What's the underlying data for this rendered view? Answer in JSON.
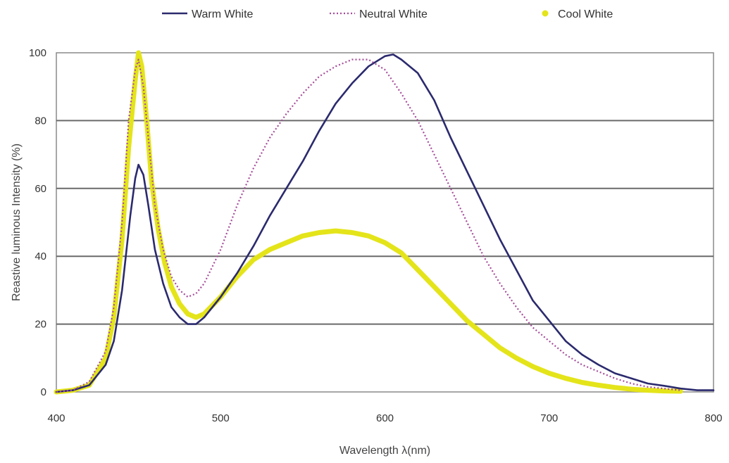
{
  "chart_data": {
    "type": "line",
    "xlabel": "Wavelength  λ(nm)",
    "ylabel": "Reastive  luminous  Intensity  (%)",
    "xlim": [
      400,
      800
    ],
    "ylim": [
      0,
      100
    ],
    "xticks": [
      "400",
      "500",
      "600",
      "700",
      "800"
    ],
    "yticks": [
      "0",
      "20",
      "40",
      "60",
      "80",
      "100"
    ],
    "grid": "horizontal",
    "legend": "top",
    "series": [
      {
        "name": "Warm White",
        "color": "#2b2a6e",
        "style": "solid",
        "x": [
          400,
          410,
          420,
          430,
          435,
          440,
          445,
          448,
          450,
          453,
          456,
          460,
          465,
          470,
          475,
          480,
          485,
          490,
          500,
          510,
          520,
          530,
          540,
          550,
          560,
          570,
          580,
          590,
          600,
          605,
          610,
          620,
          630,
          640,
          650,
          660,
          670,
          680,
          690,
          700,
          710,
          720,
          730,
          740,
          750,
          760,
          770,
          780,
          790,
          800
        ],
        "y": [
          0,
          0.5,
          2,
          8,
          15,
          30,
          52,
          63,
          67,
          64,
          55,
          42,
          32,
          25,
          22,
          20,
          20,
          22,
          28,
          35,
          43,
          52,
          60,
          68,
          77,
          85,
          91,
          96,
          99,
          99.5,
          98,
          94,
          86,
          75,
          65,
          55,
          45,
          36,
          27,
          21,
          15,
          11,
          8,
          5.5,
          4,
          2.5,
          1.8,
          1,
          0.5,
          0.5
        ]
      },
      {
        "name": "Neutral White",
        "color": "#a64d9a",
        "style": "dotted",
        "x": [
          400,
          410,
          420,
          430,
          435,
          440,
          444,
          448,
          450,
          453,
          456,
          460,
          465,
          470,
          475,
          480,
          485,
          490,
          500,
          510,
          520,
          530,
          540,
          550,
          560,
          570,
          580,
          590,
          600,
          610,
          620,
          630,
          640,
          650,
          660,
          670,
          680,
          690,
          700,
          710,
          720,
          730,
          740,
          750,
          760,
          770,
          780
        ],
        "y": [
          0,
          0.5,
          3,
          12,
          25,
          50,
          80,
          95,
          98,
          90,
          75,
          55,
          42,
          34,
          30,
          28,
          29,
          32,
          42,
          55,
          66,
          75,
          82,
          88,
          93,
          96,
          98,
          98,
          95,
          88,
          80,
          70,
          60,
          50,
          40,
          32,
          25,
          19,
          15,
          11,
          8,
          6,
          4,
          2.5,
          1.5,
          1,
          0.5
        ]
      },
      {
        "name": "Cool White",
        "color": "#e4e41a",
        "style": "thick",
        "x": [
          400,
          410,
          420,
          430,
          435,
          440,
          444,
          448,
          450,
          452,
          455,
          458,
          462,
          466,
          470,
          475,
          480,
          485,
          490,
          500,
          510,
          520,
          530,
          540,
          550,
          560,
          570,
          580,
          590,
          600,
          610,
          620,
          630,
          640,
          650,
          660,
          670,
          680,
          690,
          700,
          710,
          720,
          730,
          740,
          750,
          760,
          770,
          780
        ],
        "y": [
          0,
          0.5,
          2,
          10,
          22,
          45,
          72,
          92,
          100,
          96,
          80,
          62,
          48,
          38,
          31,
          26,
          23,
          22,
          23,
          28,
          34,
          39,
          42,
          44,
          46,
          47,
          47.5,
          47,
          46,
          44,
          41,
          36,
          31,
          26,
          21,
          17,
          13,
          10,
          7.5,
          5.5,
          4,
          2.8,
          2,
          1.3,
          0.8,
          0.5,
          0.3,
          0.2
        ]
      }
    ]
  }
}
